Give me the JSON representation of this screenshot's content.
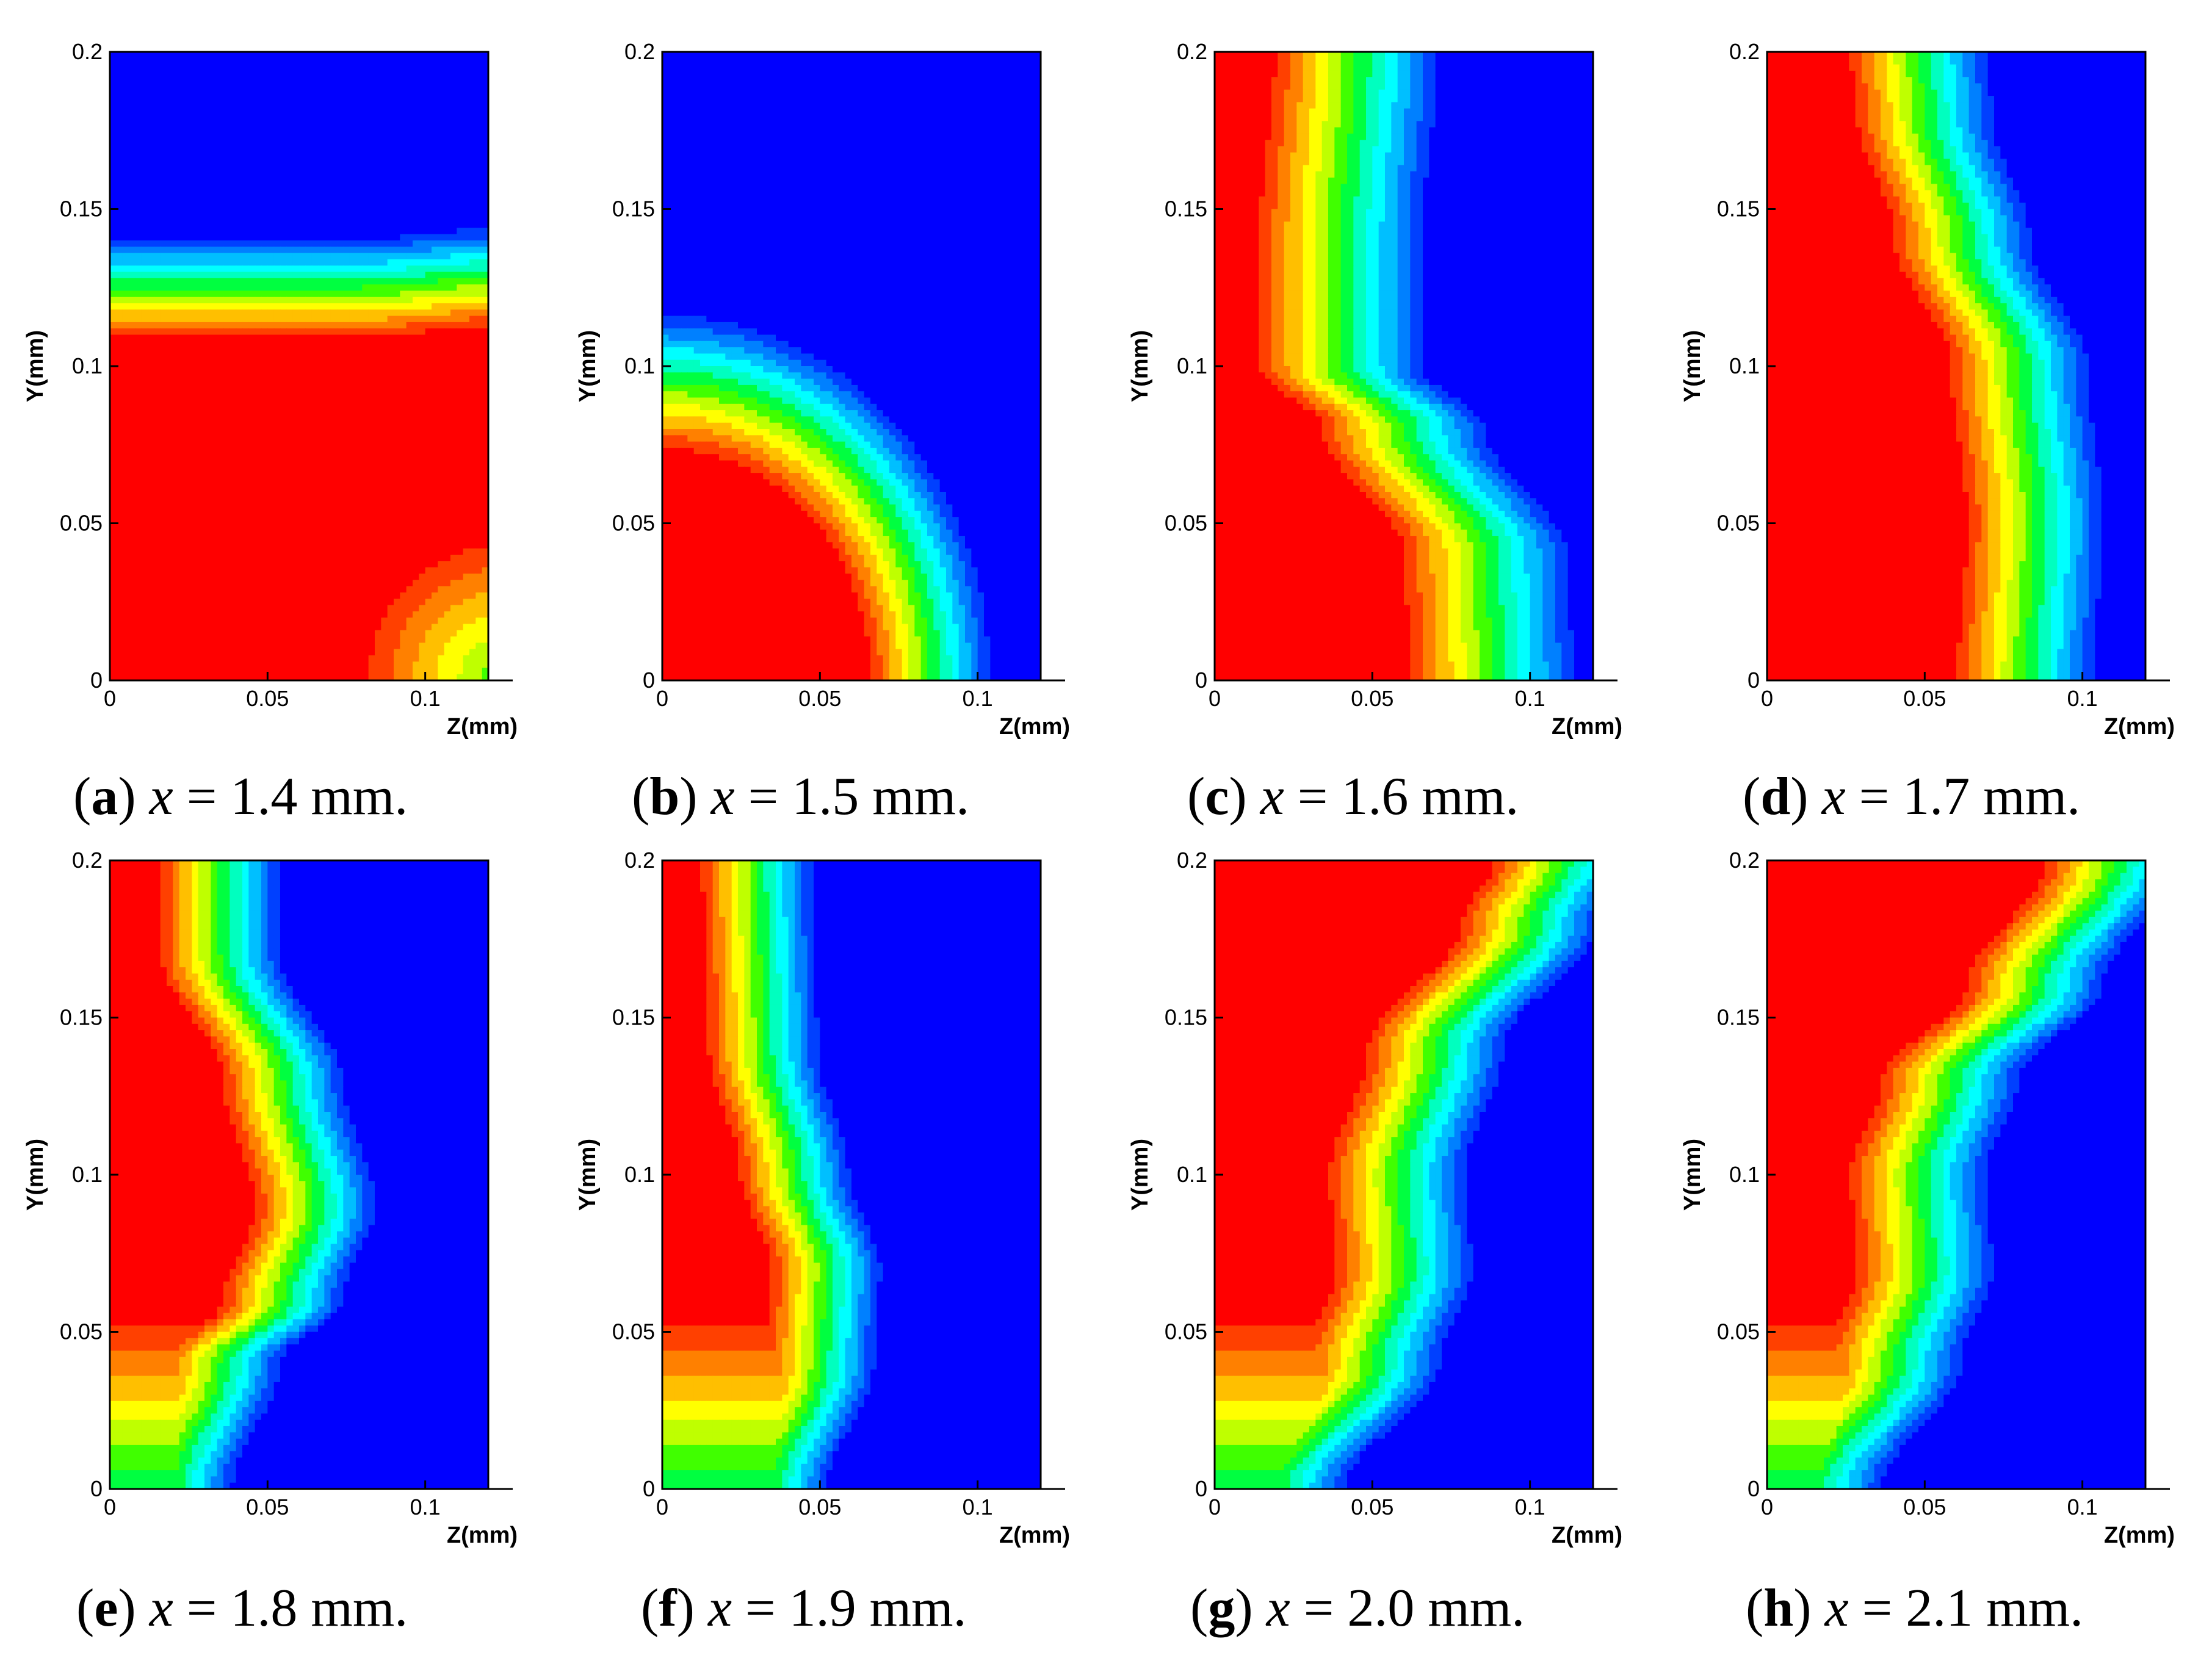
{
  "chart_data": {
    "type": "heatmap",
    "description_free": true,
    "xlabel": "Z(mm)",
    "ylabel": "Y(mm)",
    "xlim": [
      0,
      0.12
    ],
    "ylim": [
      0,
      0.2
    ],
    "xticks": [
      "0",
      "0.05",
      "0.1"
    ],
    "yticks": [
      "0",
      "0.05",
      "0.1",
      "0.15",
      "0.2"
    ],
    "colormap": [
      "#ff0000",
      "#ff4000",
      "#ff8000",
      "#ffbf00",
      "#ffff00",
      "#bfff00",
      "#40ff00",
      "#00ff40",
      "#00ffbf",
      "#00ffff",
      "#00bfff",
      "#0080ff",
      "#0040ff",
      "#0000ff"
    ],
    "panels": [
      {
        "letter": "a",
        "var": "x",
        "rest": " = 1.4 mm."
      },
      {
        "letter": "b",
        "var": "x",
        "rest": " = 1.5 mm."
      },
      {
        "letter": "c",
        "var": "x",
        "rest": " = 1.6 mm."
      },
      {
        "letter": "d",
        "var": "x",
        "rest": " = 1.7 mm."
      },
      {
        "letter": "e",
        "var": "x",
        "rest": " = 1.8 mm."
      },
      {
        "letter": "f",
        "var": "x",
        "rest": " = 1.9 mm."
      },
      {
        "letter": "g",
        "var": "x",
        "rest": " = 2.0 mm."
      },
      {
        "letter": "h",
        "var": "x",
        "rest": " = 2.1 mm."
      }
    ]
  }
}
